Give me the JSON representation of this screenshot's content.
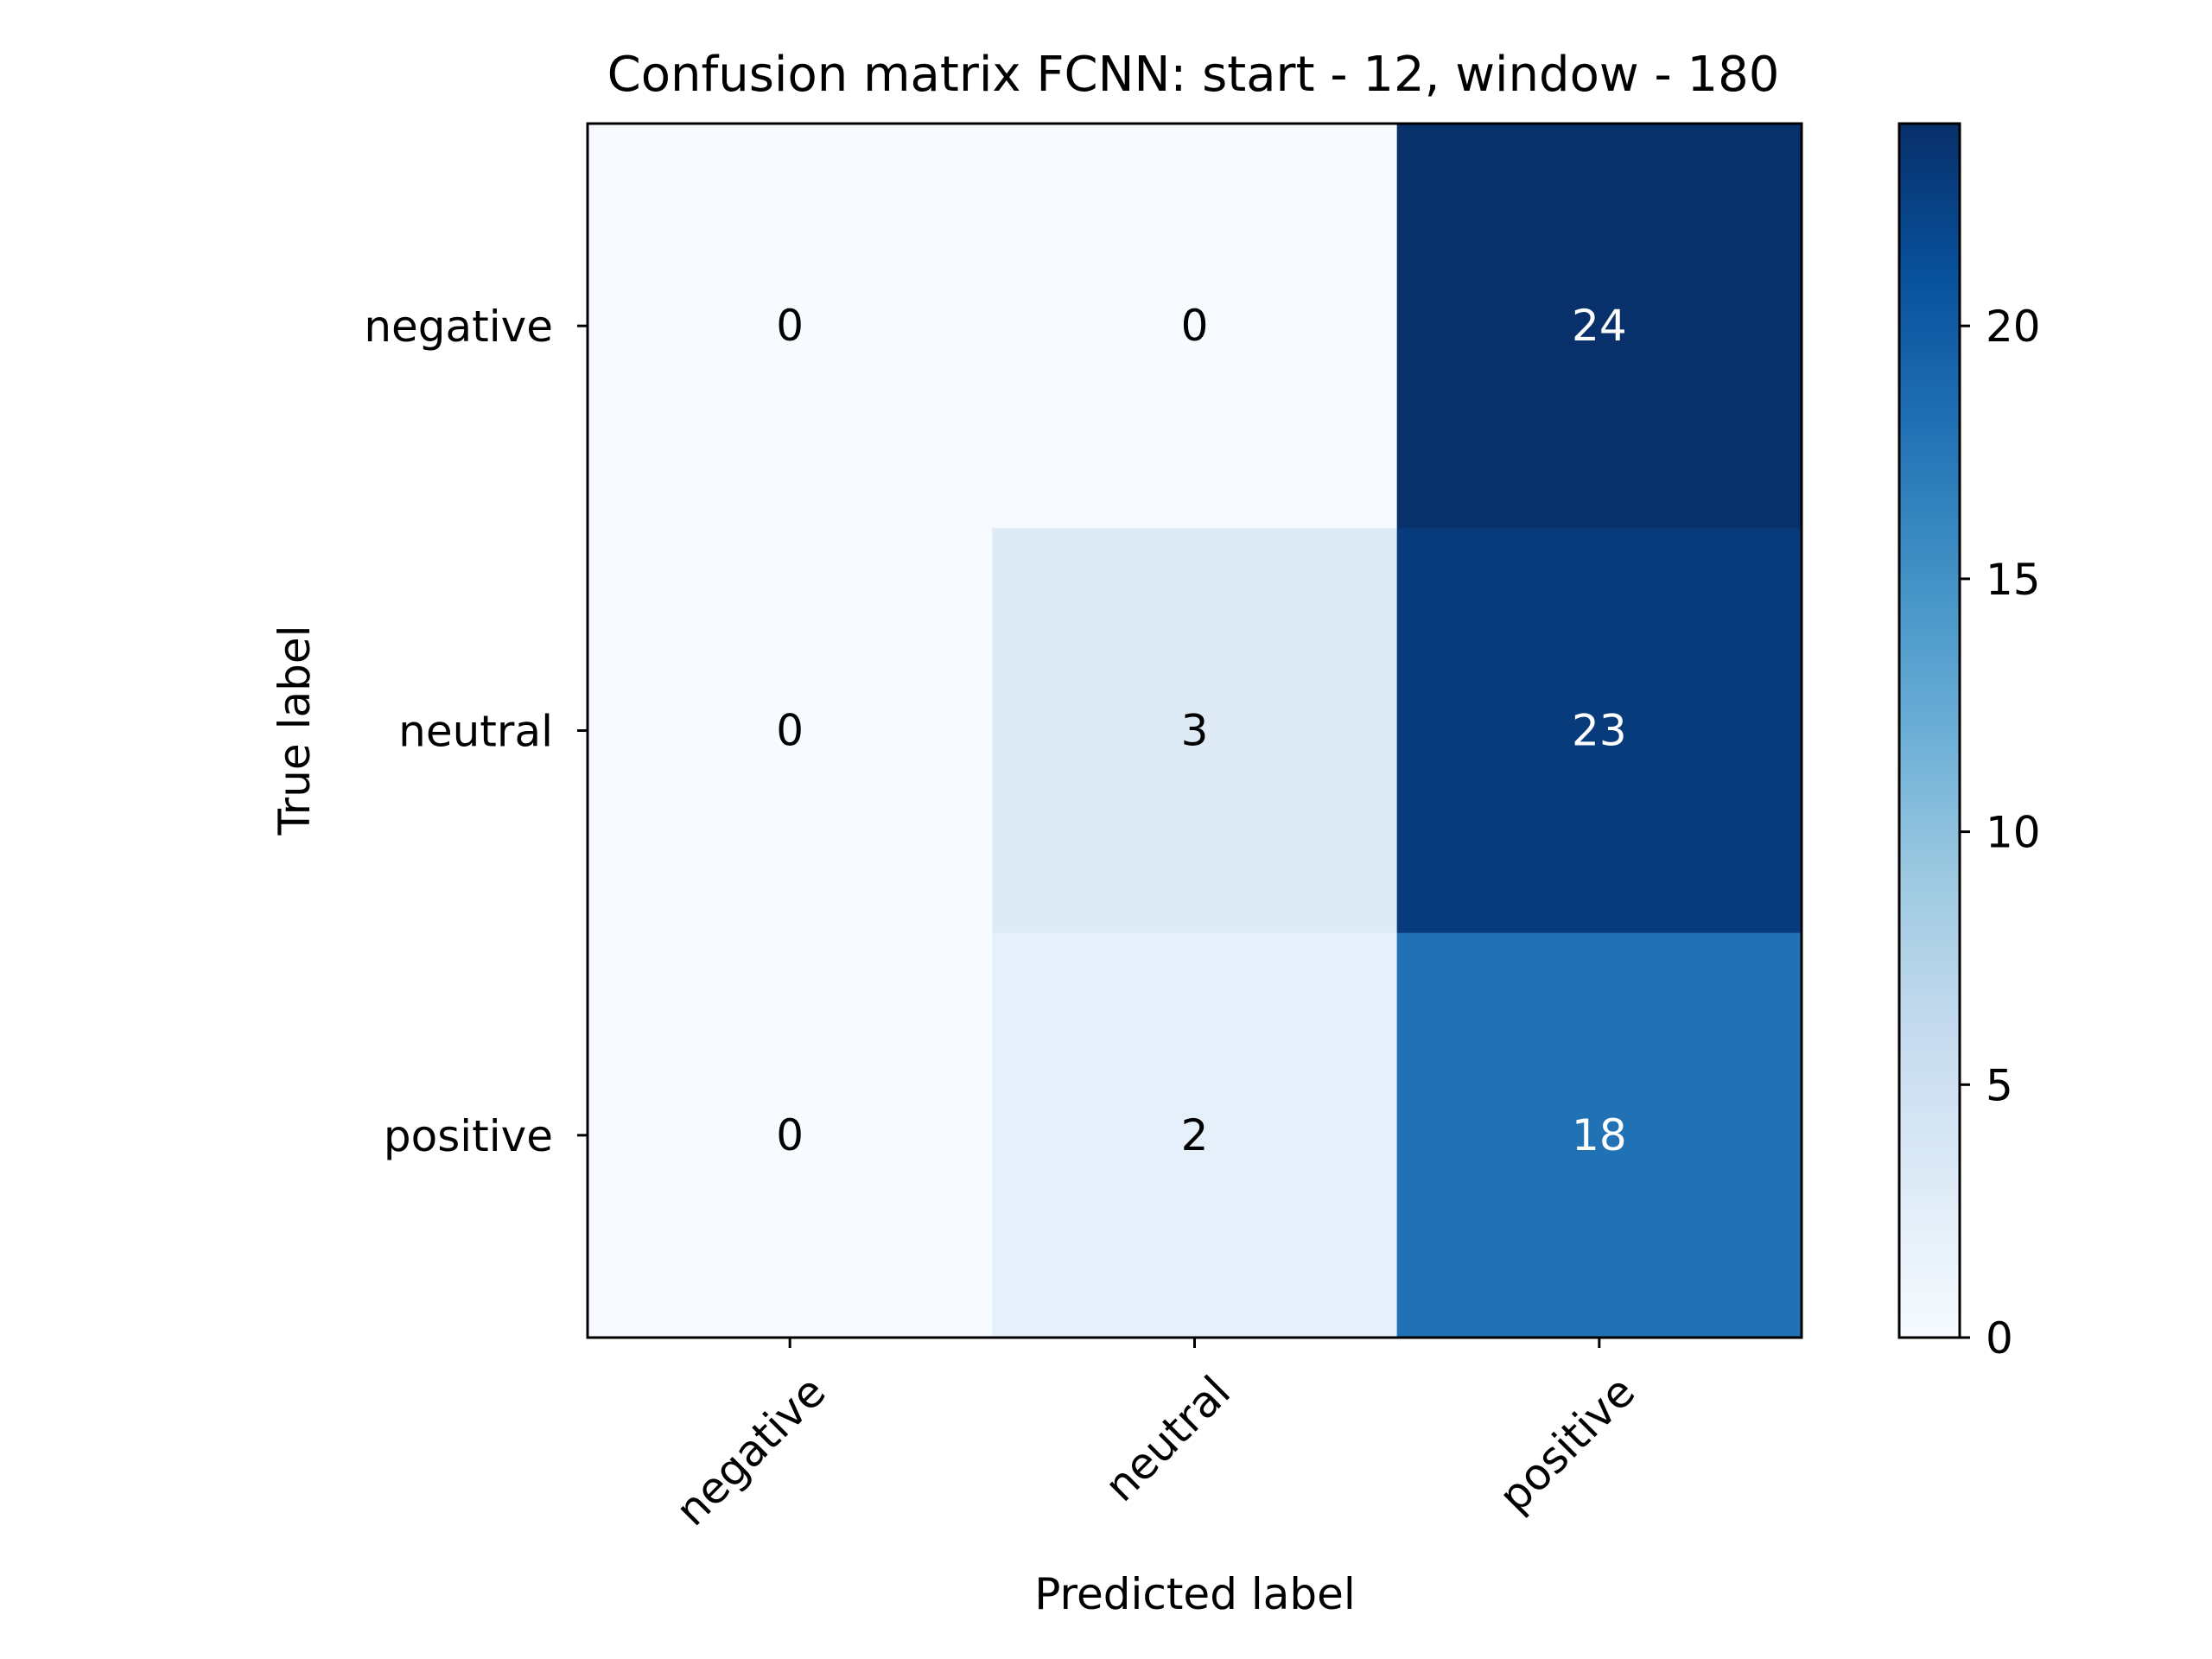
{
  "chart_data": {
    "type": "heatmap",
    "title": "Confusion matrix FCNN: start - 12, window - 180",
    "xlabel": "Predicted label",
    "ylabel": "True label",
    "x_categories": [
      "negative",
      "neutral",
      "positive"
    ],
    "y_categories": [
      "negative",
      "neutral",
      "positive"
    ],
    "values": [
      [
        0,
        0,
        24
      ],
      [
        0,
        3,
        23
      ],
      [
        0,
        2,
        18
      ]
    ],
    "colormap": "Blues",
    "colorbar": {
      "min": 0,
      "max": 24,
      "ticks": [
        0,
        5,
        10,
        15,
        20
      ]
    },
    "text_color_threshold": 12,
    "colors": {
      "text_dark": "#000000",
      "text_light": "#ffffff",
      "axis": "#000000"
    }
  }
}
